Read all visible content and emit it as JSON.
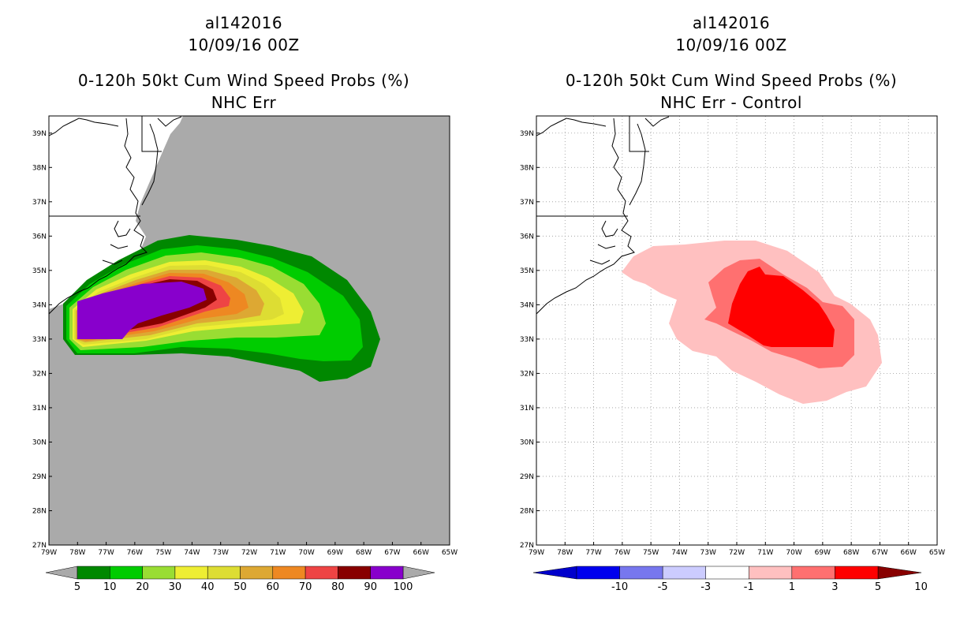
{
  "left": {
    "storm_id": "al142016",
    "datetime": "10/09/16 00Z",
    "product": "0-120h 50kt Cum Wind Speed Probs (%)",
    "subtitle": "NHC Err",
    "colorbar": {
      "labels": [
        "5",
        "10",
        "20",
        "30",
        "40",
        "50",
        "60",
        "70",
        "80",
        "90",
        "100"
      ],
      "colors": [
        "#008800",
        "#00cc00",
        "#99dd33",
        "#eeee33",
        "#dddd33",
        "#dda833",
        "#ee8822",
        "#ee4444",
        "#880000",
        "#8800cc"
      ]
    }
  },
  "right": {
    "storm_id": "al142016",
    "datetime": "10/09/16 00Z",
    "product": "0-120h 50kt Cum Wind Speed Probs (%)",
    "subtitle": "NHC Err - Control",
    "colorbar": {
      "labels": [
        "-10",
        "-5",
        "-3",
        "-1",
        "1",
        "3",
        "5",
        "10"
      ],
      "colors": [
        "#0000cc",
        "#0000ee",
        "#7777ee",
        "#ccccff",
        "#ffffff",
        "#ffc0c0",
        "#ff7070",
        "#ff0000",
        "#880000"
      ]
    }
  },
  "axes": {
    "lat_labels": [
      "39N",
      "38N",
      "37N",
      "36N",
      "35N",
      "34N",
      "33N",
      "32N",
      "31N",
      "30N",
      "29N",
      "28N",
      "27N"
    ],
    "lon_labels": [
      "79W",
      "78W",
      "77W",
      "76W",
      "75W",
      "74W",
      "73W",
      "72W",
      "71W",
      "70W",
      "69W",
      "68W",
      "67W",
      "66W",
      "65W"
    ]
  },
  "colors": {
    "map_background_left": "#aaaaaa",
    "map_background_right": "#ffffff"
  }
}
